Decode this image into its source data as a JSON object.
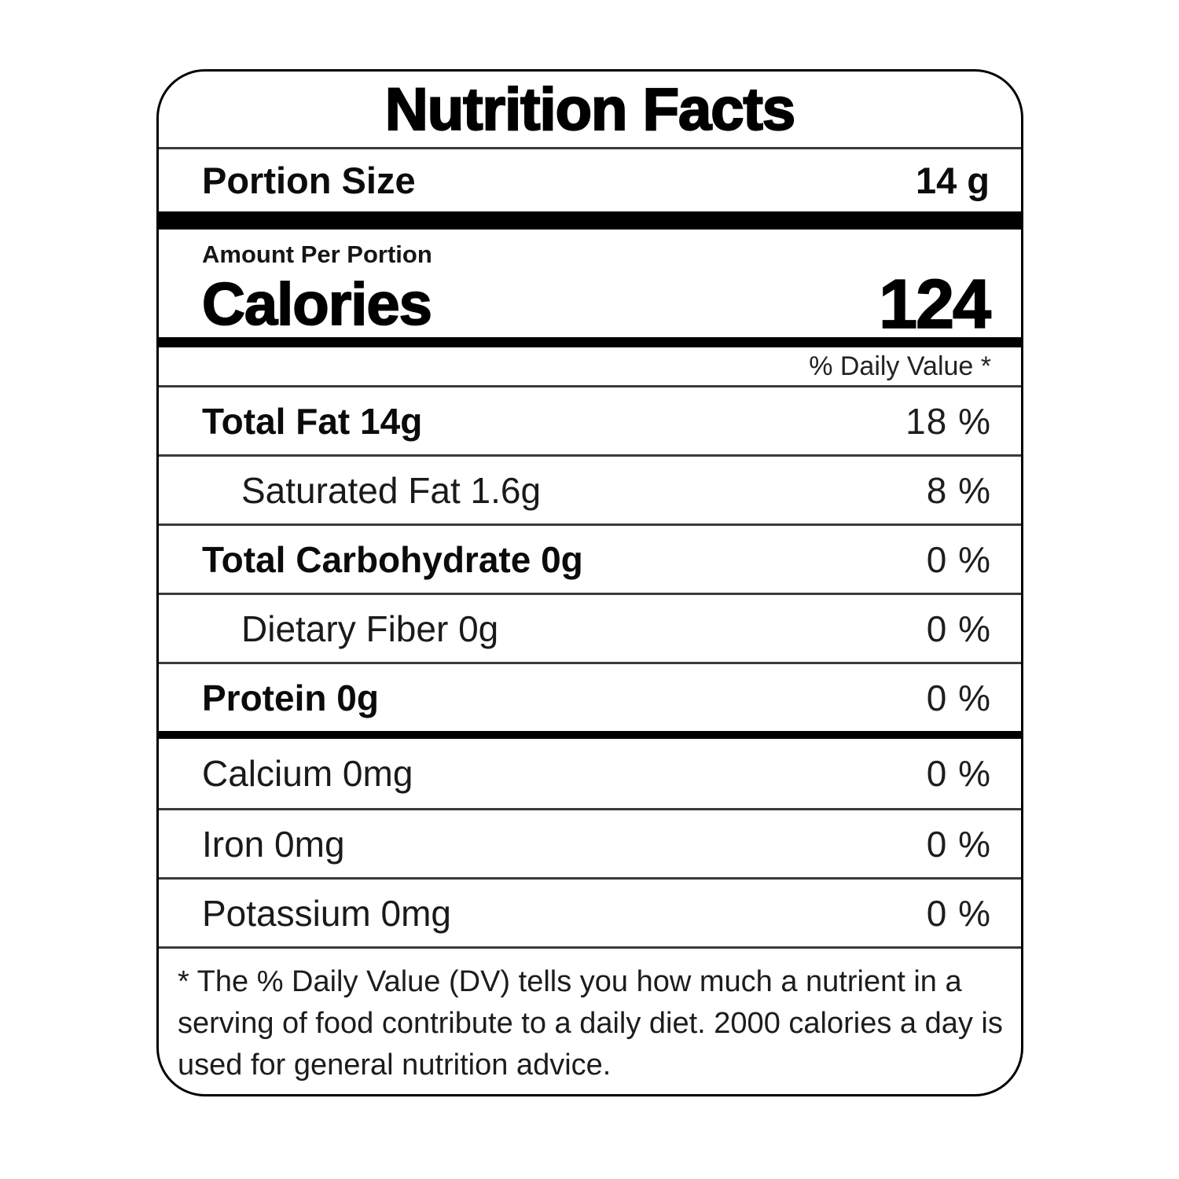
{
  "label": {
    "title": "Nutrition Facts",
    "portion_label": "Portion Size",
    "portion_value": "14 g",
    "amount_per_portion": "Amount Per Portion",
    "calories_label": "Calories",
    "calories_value": "124",
    "daily_value_header": "% Daily Value *",
    "nutrients": [
      {
        "name": "Total Fat 14g",
        "daily_value": "18 %"
      },
      {
        "name": "Saturated Fat 1.6g",
        "daily_value": "8 %"
      },
      {
        "name": "Total Carbohydrate 0g",
        "daily_value": "0 %"
      },
      {
        "name": "Dietary Fiber 0g",
        "daily_value": "0 %"
      },
      {
        "name": "Protein 0g",
        "daily_value": "0 %"
      }
    ],
    "minerals": [
      {
        "name": "Calcium 0mg",
        "daily_value": "0 %"
      },
      {
        "name": "Iron 0mg",
        "daily_value": "0 %"
      },
      {
        "name": "Potassium 0mg",
        "daily_value": "0 %"
      }
    ],
    "footnote": "* The % Daily Value (DV) tells you how much a nutrient in a serving of food contribute to a daily diet. 2000 calories a day is used for general nutrition advice."
  }
}
